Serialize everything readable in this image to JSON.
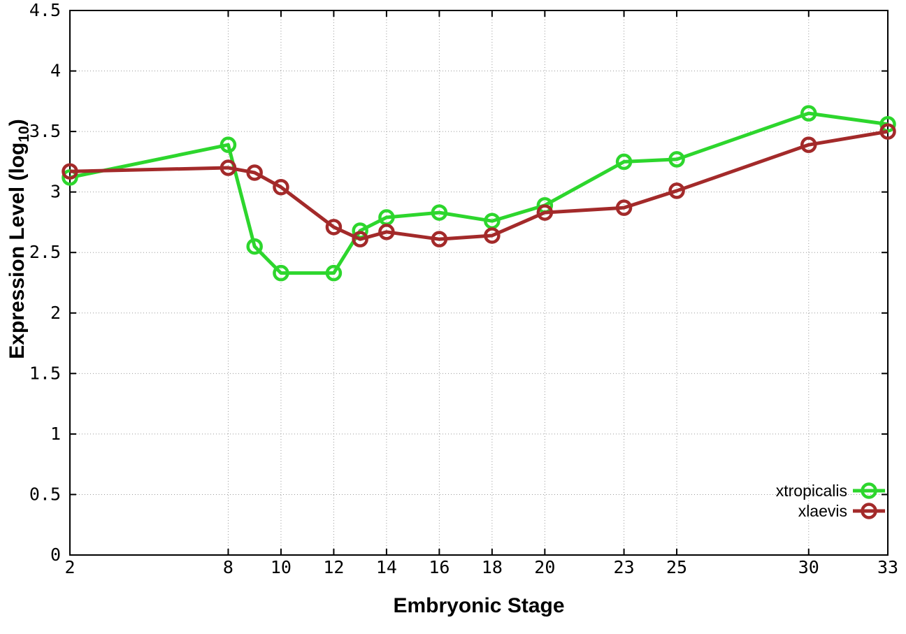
{
  "chart_data": {
    "type": "line",
    "title": "",
    "xlabel": "Embryonic Stage",
    "ylabel": "Expression Level (log10)",
    "ylabel_parts": {
      "base": "Expression Level (log",
      "sub": "10",
      "close": ")"
    },
    "xlim": [
      2,
      33
    ],
    "ylim": [
      0,
      4.5
    ],
    "grid": true,
    "legend_position": "inside-bottom-right",
    "background_color": "#ffffff",
    "axis_color": "#000000",
    "grid_color": "#9a9a9a",
    "x_ticks": [
      2,
      8,
      10,
      12,
      14,
      16,
      18,
      20,
      23,
      25,
      30,
      33
    ],
    "x_tick_labels": [
      "2",
      "8",
      "10",
      "12",
      "14",
      "16",
      "18",
      "20",
      "23",
      "25",
      "30",
      "33"
    ],
    "y_ticks": [
      0,
      0.5,
      1,
      1.5,
      2,
      2.5,
      3,
      3.5,
      4,
      4.5
    ],
    "y_tick_labels": [
      "0",
      "0.5",
      "1",
      "1.5",
      "2",
      "2.5",
      "3",
      "3.5",
      "4",
      "4.5"
    ],
    "x": [
      2,
      8,
      9,
      10,
      12,
      13,
      14,
      16,
      18,
      20,
      23,
      25,
      30,
      33
    ],
    "series": [
      {
        "name": "xtropicalis",
        "color": "#2dd62d",
        "marker": "open-circle",
        "values": [
          3.12,
          3.39,
          2.55,
          2.33,
          2.33,
          2.68,
          2.79,
          2.83,
          2.76,
          2.89,
          3.25,
          3.27,
          3.65,
          3.56
        ]
      },
      {
        "name": "xlaevis",
        "color": "#a32a2a",
        "marker": "open-circle",
        "values": [
          3.17,
          3.2,
          3.16,
          3.04,
          2.71,
          2.61,
          2.67,
          2.61,
          2.64,
          2.83,
          2.87,
          3.01,
          3.39,
          3.5
        ]
      }
    ]
  }
}
